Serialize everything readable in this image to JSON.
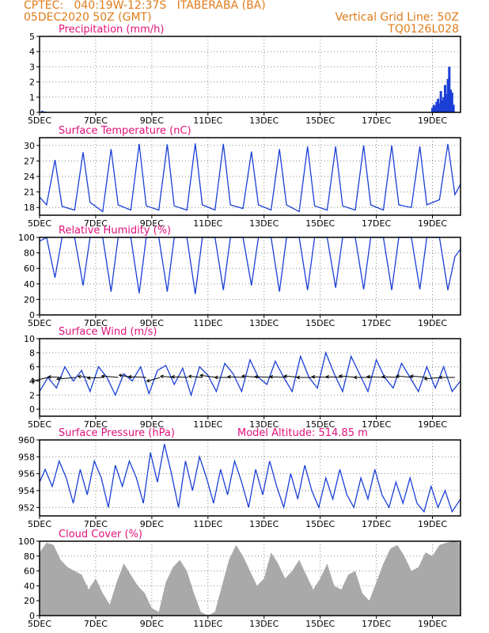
{
  "header": {
    "line1": "CPTEC:   040:19W-12:37S   ITABERABA (BA)",
    "line2": "05DEC2020 50Z (GMT)",
    "grid_note": "Vertical Grid Line: 50Z",
    "code": "TQ0126L028",
    "text_color": "#e07b1a"
  },
  "colors": {
    "title": "#e0117a",
    "series": "#1a3fd6",
    "bars": "#a9a9a9",
    "wind_arrow": "#000000"
  },
  "x_axis": {
    "ticks": [
      "5DEC",
      "7DEC",
      "9DEC",
      "11DEC",
      "13DEC",
      "15DEC",
      "17DEC",
      "19DEC"
    ],
    "tick_days": [
      5,
      7,
      9,
      11,
      13,
      15,
      17,
      19
    ],
    "range_days": [
      5,
      20
    ]
  },
  "chart_data": [
    {
      "type": "bar",
      "title": "Precipitation (mm/h)",
      "ylim": [
        0,
        5
      ],
      "yticks": [
        "0",
        "1",
        "2",
        "3",
        "4",
        "5"
      ],
      "x_units": "days of December 2020",
      "x": [
        5.1,
        5.2,
        19.0,
        19.05,
        19.1,
        19.15,
        19.2,
        19.25,
        19.3,
        19.35,
        19.4,
        19.45,
        19.5,
        19.55,
        19.6,
        19.65,
        19.7,
        19.75
      ],
      "values": [
        0.1,
        0.05,
        0.3,
        0.5,
        0.4,
        0.7,
        0.9,
        0.6,
        1.4,
        0.8,
        1.0,
        1.8,
        1.2,
        2.2,
        3.0,
        1.5,
        1.3,
        0.5
      ]
    },
    {
      "type": "line",
      "title": "Surface Temperature (nC)",
      "ylim": [
        16.5,
        31.5
      ],
      "yticks": [
        "18",
        "21",
        "24",
        "27",
        "30"
      ],
      "x_units": "days of December 2020",
      "x": [
        5.0,
        5.25,
        5.55,
        5.8,
        6.25,
        6.55,
        6.8,
        7.25,
        7.55,
        7.8,
        8.25,
        8.55,
        8.8,
        9.25,
        9.55,
        9.8,
        10.25,
        10.55,
        10.8,
        11.25,
        11.55,
        11.8,
        12.25,
        12.55,
        12.8,
        13.25,
        13.55,
        13.8,
        14.25,
        14.55,
        14.8,
        15.25,
        15.55,
        15.8,
        16.25,
        16.55,
        16.8,
        17.25,
        17.55,
        17.8,
        18.25,
        18.55,
        18.8,
        19.25,
        19.55,
        19.8,
        20.0
      ],
      "values": [
        20.0,
        18.5,
        27.2,
        18.2,
        17.5,
        28.7,
        19.0,
        17.2,
        29.3,
        18.5,
        17.5,
        30.3,
        18.3,
        17.5,
        30.2,
        18.3,
        17.5,
        30.4,
        18.5,
        17.5,
        30.3,
        18.5,
        17.8,
        28.8,
        18.5,
        17.5,
        29.3,
        18.5,
        17.2,
        29.8,
        18.3,
        17.5,
        29.8,
        18.3,
        17.5,
        30.0,
        18.5,
        17.5,
        30.0,
        18.5,
        18.0,
        29.8,
        18.5,
        19.5,
        30.3,
        20.5,
        22.5
      ]
    },
    {
      "type": "line",
      "title": "Relative Humidity (%)",
      "ylim": [
        0,
        100
      ],
      "yticks": [
        "0",
        "20",
        "40",
        "60",
        "80",
        "100"
      ],
      "x_units": "days of December 2020",
      "x": [
        5.0,
        5.25,
        5.55,
        5.8,
        6.25,
        6.55,
        6.8,
        7.25,
        7.55,
        7.8,
        8.25,
        8.55,
        8.8,
        9.25,
        9.55,
        9.8,
        10.25,
        10.55,
        10.8,
        11.25,
        11.55,
        11.8,
        12.25,
        12.55,
        12.8,
        13.25,
        13.55,
        13.8,
        14.25,
        14.55,
        14.8,
        15.25,
        15.55,
        15.8,
        16.25,
        16.55,
        16.8,
        17.25,
        17.55,
        17.8,
        18.25,
        18.55,
        18.8,
        19.25,
        19.55,
        19.8,
        20.0
      ],
      "values": [
        95,
        100,
        48,
        100,
        100,
        38,
        100,
        100,
        30,
        100,
        100,
        28,
        100,
        100,
        30,
        100,
        100,
        27,
        100,
        100,
        32,
        100,
        100,
        38,
        100,
        100,
        30,
        100,
        100,
        32,
        100,
        100,
        35,
        100,
        100,
        33,
        100,
        100,
        32,
        100,
        100,
        33,
        100,
        100,
        32,
        75,
        85
      ]
    },
    {
      "type": "line",
      "title": "Surface Wind (m/s)",
      "ylim": [
        -1,
        10
      ],
      "yticks": [
        "0",
        "2",
        "4",
        "6",
        "8",
        "10"
      ],
      "x_units": "days of December 2020",
      "x": [
        5.0,
        5.3,
        5.6,
        5.9,
        6.2,
        6.5,
        6.8,
        7.1,
        7.4,
        7.7,
        8.0,
        8.3,
        8.6,
        8.9,
        9.2,
        9.5,
        9.8,
        10.1,
        10.4,
        10.7,
        11.0,
        11.3,
        11.6,
        11.9,
        12.2,
        12.5,
        12.8,
        13.1,
        13.4,
        13.7,
        14.0,
        14.3,
        14.6,
        14.9,
        15.2,
        15.5,
        15.8,
        16.1,
        16.4,
        16.7,
        17.0,
        17.3,
        17.6,
        17.9,
        18.2,
        18.5,
        18.8,
        19.1,
        19.4,
        19.7,
        20.0
      ],
      "values": [
        2.5,
        4.5,
        3.0,
        6.0,
        4.0,
        5.5,
        2.5,
        6.0,
        4.5,
        2.0,
        5.0,
        4.0,
        6.0,
        2.2,
        5.5,
        6.2,
        3.5,
        5.8,
        2.0,
        6.0,
        4.8,
        2.5,
        6.5,
        5.0,
        2.5,
        7.0,
        4.5,
        3.5,
        6.8,
        4.5,
        2.5,
        7.5,
        4.5,
        3.0,
        8.0,
        5.0,
        2.5,
        7.5,
        5.0,
        2.5,
        7.0,
        4.5,
        3.0,
        6.5,
        4.5,
        2.5,
        6.0,
        3.0,
        6.0,
        2.5,
        4.0
      ],
      "wind_vectors": {
        "x": [
          5.3,
          5.8,
          6.3,
          6.8,
          7.3,
          7.8,
          8.3,
          8.8,
          9.3,
          9.8,
          10.3,
          10.8,
          11.3,
          11.8,
          12.3,
          12.8,
          13.3,
          13.8,
          14.3,
          14.8,
          15.3,
          15.8,
          16.3,
          16.8,
          17.3,
          17.8,
          18.3,
          18.8,
          19.3,
          19.8
        ],
        "speed": [
          3.2,
          2.5,
          3.5,
          2.2,
          3.0,
          3.0,
          2.5,
          3.2,
          2.8,
          2.5,
          3.0,
          2.5,
          3.0,
          2.8,
          3.0,
          3.0,
          3.2,
          3.0,
          3.0,
          3.2,
          3.0,
          3.0,
          3.2,
          3.0,
          3.2,
          3.0,
          3.0,
          3.0,
          3.0,
          2.8
        ],
        "direction_deg": [
          65,
          95,
          80,
          100,
          85,
          100,
          110,
          95,
          60,
          100,
          95,
          100,
          105,
          90,
          95,
          100,
          95,
          95,
          100,
          90,
          95,
          95,
          100,
          90,
          95,
          95,
          100,
          100,
          80,
          90
        ]
      }
    },
    {
      "type": "line",
      "title": "Surface Pressure (hPa)",
      "annotation": "Model Altitude: 514.85 m",
      "ylim": [
        951,
        960
      ],
      "yticks": [
        "952",
        "954",
        "956",
        "958",
        "960"
      ],
      "x_units": "days of December 2020",
      "x": [
        5.0,
        5.2,
        5.45,
        5.7,
        5.95,
        6.2,
        6.45,
        6.7,
        6.95,
        7.2,
        7.45,
        7.7,
        7.95,
        8.2,
        8.45,
        8.7,
        8.95,
        9.2,
        9.45,
        9.7,
        9.95,
        10.2,
        10.45,
        10.7,
        10.95,
        11.2,
        11.45,
        11.7,
        11.95,
        12.2,
        12.45,
        12.7,
        12.95,
        13.2,
        13.45,
        13.7,
        13.95,
        14.2,
        14.45,
        14.7,
        14.95,
        15.2,
        15.45,
        15.7,
        15.95,
        16.2,
        16.45,
        16.7,
        16.95,
        17.2,
        17.45,
        17.7,
        17.95,
        18.2,
        18.45,
        18.7,
        18.95,
        19.2,
        19.45,
        19.7,
        20.0
      ],
      "values": [
        955.0,
        956.5,
        954.5,
        957.5,
        955.5,
        952.5,
        956.5,
        953.5,
        957.5,
        955.5,
        952.0,
        957.0,
        954.5,
        957.5,
        955.5,
        952.5,
        958.5,
        955.0,
        959.5,
        956.0,
        952.0,
        957.5,
        954.0,
        958.0,
        955.5,
        952.5,
        956.5,
        953.5,
        957.5,
        955.0,
        952.0,
        956.5,
        953.5,
        957.5,
        954.5,
        952.0,
        956.0,
        953.0,
        957.0,
        954.0,
        952.0,
        955.5,
        953.0,
        956.5,
        953.5,
        952.0,
        955.5,
        953.0,
        956.5,
        953.5,
        952.0,
        955.0,
        952.5,
        955.5,
        952.5,
        951.5,
        954.5,
        952.0,
        954.0,
        951.5,
        953.0
      ]
    },
    {
      "type": "area",
      "title": "Cloud Cover (%)",
      "ylim": [
        0,
        100
      ],
      "yticks": [
        "0",
        "20",
        "40",
        "60",
        "80",
        "100"
      ],
      "x_units": "days of December 2020",
      "x": [
        5.0,
        5.25,
        5.5,
        5.75,
        6.0,
        6.25,
        6.5,
        6.75,
        7.0,
        7.25,
        7.5,
        7.75,
        8.0,
        8.25,
        8.5,
        8.75,
        9.0,
        9.25,
        9.5,
        9.75,
        10.0,
        10.25,
        10.5,
        10.75,
        11.0,
        11.25,
        11.5,
        11.75,
        12.0,
        12.25,
        12.5,
        12.75,
        13.0,
        13.25,
        13.5,
        13.75,
        14.0,
        14.25,
        14.5,
        14.75,
        15.0,
        15.25,
        15.5,
        15.75,
        16.0,
        16.25,
        16.5,
        16.75,
        17.0,
        17.25,
        17.5,
        17.75,
        18.0,
        18.25,
        18.5,
        18.75,
        19.0,
        19.25,
        19.5,
        19.75,
        20.0
      ],
      "values": [
        85,
        98,
        95,
        75,
        65,
        60,
        55,
        35,
        50,
        30,
        15,
        45,
        70,
        55,
        40,
        30,
        10,
        5,
        45,
        65,
        75,
        60,
        30,
        5,
        0,
        5,
        40,
        75,
        95,
        80,
        60,
        40,
        50,
        85,
        70,
        50,
        60,
        75,
        55,
        35,
        50,
        70,
        40,
        35,
        55,
        60,
        30,
        20,
        45,
        70,
        90,
        95,
        80,
        60,
        65,
        85,
        80,
        95,
        98,
        100,
        98
      ]
    }
  ]
}
